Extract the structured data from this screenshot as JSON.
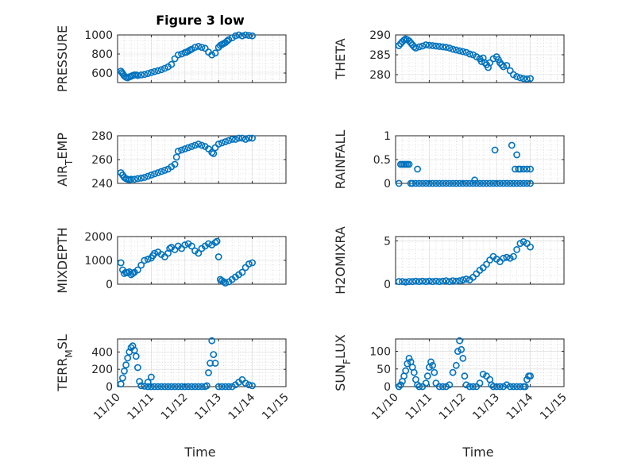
{
  "figure": {
    "title": "Figure 3 low",
    "marker_color": "#0072BD"
  },
  "chart_data": [
    {
      "type": "scatter",
      "panel": "pressure",
      "title": "Figure 3 low",
      "ylabel": "PRESSURE",
      "ylim": [
        500,
        1000
      ],
      "yticks": [
        600,
        800,
        1000
      ],
      "xlim": [
        0,
        5
      ],
      "xlabel": "",
      "grid": true,
      "marker": "circle",
      "x": [
        0.1,
        0.13,
        0.16,
        0.2,
        0.25,
        0.3,
        0.35,
        0.4,
        0.45,
        0.5,
        0.55,
        0.6,
        0.7,
        0.8,
        0.9,
        1.0,
        1.1,
        1.2,
        1.3,
        1.4,
        1.5,
        1.6,
        1.7,
        1.8,
        1.9,
        2.0,
        2.05,
        2.1,
        2.15,
        2.2,
        2.3,
        2.4,
        2.5,
        2.6,
        2.7,
        2.8,
        2.9,
        3.0,
        3.05,
        3.1,
        3.15,
        3.2,
        3.25,
        3.3,
        3.4,
        3.5,
        3.6,
        3.7,
        3.8,
        3.9,
        4.0
      ],
      "y": [
        620,
        605,
        590,
        570,
        555,
        550,
        560,
        565,
        575,
        580,
        580,
        575,
        580,
        585,
        595,
        605,
        615,
        625,
        635,
        650,
        665,
        690,
        750,
        790,
        800,
        815,
        820,
        830,
        840,
        850,
        870,
        880,
        870,
        860,
        820,
        790,
        810,
        870,
        890,
        900,
        910,
        920,
        935,
        950,
        970,
        990,
        1000,
        990,
        1000,
        995,
        990
      ]
    },
    {
      "type": "scatter",
      "panel": "theta",
      "ylabel": "THETA",
      "ylim": [
        278,
        290
      ],
      "yticks": [
        280,
        285,
        290
      ],
      "xlim": [
        0,
        5
      ],
      "grid": true,
      "marker": "circle",
      "x": [
        0.1,
        0.15,
        0.2,
        0.25,
        0.3,
        0.35,
        0.4,
        0.45,
        0.5,
        0.55,
        0.6,
        0.7,
        0.8,
        0.9,
        1.0,
        1.1,
        1.2,
        1.3,
        1.4,
        1.5,
        1.6,
        1.7,
        1.8,
        1.9,
        2.0,
        2.1,
        2.2,
        2.3,
        2.4,
        2.5,
        2.55,
        2.6,
        2.65,
        2.7,
        2.75,
        2.8,
        2.9,
        3.0,
        3.05,
        3.1,
        3.15,
        3.2,
        3.3,
        3.4,
        3.5,
        3.6,
        3.7,
        3.8,
        3.9,
        4.0
      ],
      "y": [
        287.3,
        287.8,
        288.3,
        288.7,
        289.0,
        288.8,
        288.5,
        288.0,
        287.5,
        287.0,
        286.7,
        287.0,
        287.2,
        287.5,
        287.4,
        287.3,
        287.2,
        287.1,
        287.0,
        286.9,
        286.7,
        286.4,
        286.2,
        286.0,
        285.8,
        285.6,
        285.2,
        285.0,
        284.5,
        284.0,
        283.3,
        284.2,
        283.0,
        282.5,
        281.8,
        283.0,
        284.0,
        284.5,
        283.8,
        283.0,
        282.5,
        282.0,
        282.3,
        281.0,
        280.0,
        279.5,
        279.2,
        279.0,
        278.9,
        279.0
      ]
    },
    {
      "type": "scatter",
      "panel": "air_temp",
      "ylabel": "AIR",
      "ylabel_sub": "T",
      "ylabel_rest": "EMP",
      "ylim": [
        240,
        280
      ],
      "yticks": [
        240,
        260,
        280
      ],
      "xlim": [
        0,
        5
      ],
      "grid": true,
      "marker": "circle",
      "x": [
        0.1,
        0.15,
        0.2,
        0.25,
        0.3,
        0.35,
        0.4,
        0.5,
        0.6,
        0.7,
        0.8,
        0.9,
        1.0,
        1.1,
        1.2,
        1.3,
        1.4,
        1.5,
        1.6,
        1.7,
        1.75,
        1.8,
        1.9,
        2.0,
        2.1,
        2.2,
        2.3,
        2.4,
        2.5,
        2.6,
        2.7,
        2.8,
        2.85,
        2.9,
        3.0,
        3.1,
        3.2,
        3.3,
        3.4,
        3.5,
        3.6,
        3.7,
        3.8,
        3.9,
        4.0
      ],
      "y": [
        249,
        247,
        245,
        244,
        243.5,
        243,
        243.5,
        243.5,
        244,
        244.5,
        245,
        246,
        247,
        248,
        249,
        250,
        251,
        252,
        254,
        256,
        262,
        267,
        268,
        269,
        270,
        271,
        272,
        273,
        272,
        271,
        269,
        266,
        265,
        270,
        273,
        274,
        275,
        276,
        277,
        277,
        278,
        278,
        277,
        278,
        278
      ]
    },
    {
      "type": "scatter",
      "panel": "rainfall",
      "ylabel": "RAINFALL",
      "ylim": [
        0,
        1
      ],
      "yticks": [
        0,
        0.5,
        1
      ],
      "ytick_labels": [
        "0",
        "0.5",
        "1"
      ],
      "xlim": [
        0,
        5
      ],
      "grid": true,
      "marker": "circle",
      "x": [
        0.1,
        0.15,
        0.2,
        0.25,
        0.3,
        0.35,
        0.4,
        0.45,
        0.5,
        0.6,
        0.7,
        0.8,
        0.9,
        1.0,
        1.1,
        1.2,
        1.3,
        1.4,
        1.5,
        1.6,
        1.7,
        1.8,
        1.9,
        2.0,
        2.1,
        2.2,
        2.3,
        2.4,
        2.5,
        2.6,
        2.7,
        2.8,
        2.9,
        3.0,
        3.1,
        3.2,
        3.3,
        3.4,
        3.5,
        3.6,
        3.7,
        3.8,
        3.9,
        4.0,
        0.65,
        2.35,
        2.95,
        3.45,
        3.55,
        3.6,
        3.65,
        3.7,
        3.8,
        3.9,
        4.0
      ],
      "y": [
        0,
        0.4,
        0.4,
        0.4,
        0.4,
        0.4,
        0.4,
        0,
        0,
        0,
        0,
        0,
        0,
        0,
        0,
        0,
        0,
        0,
        0,
        0,
        0,
        0,
        0,
        0,
        0,
        0,
        0,
        0,
        0,
        0,
        0,
        0,
        0,
        0,
        0,
        0,
        0,
        0,
        0,
        0,
        0,
        0,
        0,
        0,
        0.3,
        0.07,
        0.7,
        0.8,
        0.3,
        0.6,
        0.3,
        0.3,
        0.3,
        0.3,
        0.3
      ]
    },
    {
      "type": "scatter",
      "panel": "mixdepth",
      "ylabel": "MIXDEPTH",
      "ylim": [
        0,
        2000
      ],
      "yticks": [
        0,
        1000,
        2000
      ],
      "xlim": [
        0,
        5
      ],
      "grid": true,
      "marker": "circle",
      "x": [
        0.1,
        0.15,
        0.2,
        0.25,
        0.3,
        0.35,
        0.4,
        0.45,
        0.5,
        0.6,
        0.7,
        0.8,
        0.9,
        1.0,
        1.05,
        1.1,
        1.2,
        1.3,
        1.4,
        1.5,
        1.55,
        1.6,
        1.7,
        1.8,
        1.9,
        2.0,
        2.1,
        2.2,
        2.3,
        2.4,
        2.5,
        2.6,
        2.7,
        2.8,
        2.9,
        2.95,
        3.0,
        3.05,
        3.1,
        3.15,
        3.2,
        3.3,
        3.4,
        3.5,
        3.6,
        3.7,
        3.8,
        3.9,
        4.0
      ],
      "y": [
        900,
        600,
        450,
        500,
        480,
        520,
        400,
        450,
        500,
        600,
        800,
        1000,
        1050,
        1100,
        1200,
        1300,
        1350,
        1250,
        1150,
        1300,
        1500,
        1550,
        1450,
        1600,
        1500,
        1650,
        1700,
        1600,
        1400,
        1300,
        1500,
        1600,
        1700,
        1650,
        1750,
        1800,
        1150,
        200,
        150,
        100,
        50,
        100,
        200,
        300,
        400,
        500,
        700,
        850,
        900
      ]
    },
    {
      "type": "scatter",
      "panel": "h2omixra",
      "ylabel": "H2OMIXRA",
      "ylim": [
        0,
        5.5
      ],
      "yticks": [
        0,
        5
      ],
      "xlim": [
        0,
        5
      ],
      "grid": true,
      "marker": "circle",
      "x": [
        0.1,
        0.2,
        0.3,
        0.4,
        0.5,
        0.6,
        0.7,
        0.8,
        0.9,
        1.0,
        1.1,
        1.2,
        1.3,
        1.4,
        1.5,
        1.6,
        1.7,
        1.8,
        1.9,
        2.0,
        2.1,
        2.2,
        2.3,
        2.4,
        2.5,
        2.6,
        2.7,
        2.8,
        2.9,
        3.0,
        3.1,
        3.2,
        3.3,
        3.4,
        3.5,
        3.6,
        3.7,
        3.8,
        3.9,
        4.0
      ],
      "y": [
        0.3,
        0.3,
        0.25,
        0.3,
        0.3,
        0.35,
        0.3,
        0.35,
        0.3,
        0.35,
        0.3,
        0.35,
        0.3,
        0.35,
        0.4,
        0.3,
        0.4,
        0.35,
        0.4,
        0.5,
        0.6,
        0.5,
        0.8,
        1.2,
        1.6,
        1.9,
        2.3,
        2.8,
        3.2,
        2.9,
        2.6,
        3.0,
        3.1,
        3.0,
        3.2,
        4.0,
        4.7,
        4.9,
        4.7,
        4.3
      ]
    },
    {
      "type": "scatter",
      "panel": "terr_msl",
      "ylabel": "TERR",
      "ylabel_sub": "M",
      "ylabel_rest": "SL",
      "ylim": [
        0,
        550
      ],
      "yticks": [
        0,
        200,
        400
      ],
      "xlim": [
        0,
        5
      ],
      "grid": true,
      "marker": "circle",
      "x": [
        0.1,
        0.15,
        0.2,
        0.25,
        0.3,
        0.35,
        0.4,
        0.45,
        0.5,
        0.55,
        0.6,
        0.65,
        0.7,
        0.8,
        0.9,
        1.0,
        1.1,
        1.2,
        1.3,
        1.4,
        1.5,
        1.6,
        1.7,
        1.8,
        1.9,
        2.0,
        2.1,
        2.2,
        2.3,
        2.4,
        2.5,
        2.6,
        2.65,
        2.7,
        2.75,
        2.8,
        2.85,
        2.9,
        3.0,
        3.1,
        3.2,
        3.3,
        3.4,
        3.5,
        3.6,
        3.7,
        3.8,
        3.9,
        4.0,
        0.9,
        1.0
      ],
      "y": [
        30,
        100,
        180,
        250,
        330,
        400,
        450,
        470,
        420,
        350,
        220,
        60,
        10,
        5,
        0,
        0,
        0,
        0,
        0,
        0,
        0,
        0,
        0,
        0,
        0,
        0,
        0,
        0,
        0,
        0,
        0,
        0,
        10,
        160,
        270,
        530,
        370,
        270,
        0,
        0,
        0,
        0,
        0,
        20,
        50,
        80,
        40,
        20,
        10,
        50,
        110
      ]
    },
    {
      "type": "scatter",
      "panel": "sun_flux",
      "ylabel": "SUN",
      "ylabel_sub": "F",
      "ylabel_rest": "LUX",
      "ylim": [
        0,
        135
      ],
      "yticks": [
        0,
        50,
        100
      ],
      "xlim": [
        0,
        5
      ],
      "xticks": [
        0,
        1,
        2,
        3,
        4,
        5
      ],
      "xtick_labels": [
        "11/10",
        "11/11",
        "11/12",
        "11/13",
        "11/14",
        "11/15"
      ],
      "xlabel": "Time",
      "grid": true,
      "marker": "circle",
      "x": [
        0.1,
        0.15,
        0.2,
        0.25,
        0.3,
        0.35,
        0.4,
        0.45,
        0.5,
        0.55,
        0.6,
        0.65,
        0.7,
        0.8,
        0.9,
        0.95,
        1.0,
        1.05,
        1.1,
        1.15,
        1.2,
        1.3,
        1.4,
        1.5,
        1.6,
        1.7,
        1.8,
        1.85,
        1.9,
        1.95,
        2.0,
        2.05,
        2.1,
        2.2,
        2.3,
        2.4,
        2.5,
        2.6,
        2.7,
        2.8,
        2.85,
        2.9,
        3.0,
        3.1,
        3.2,
        3.3,
        3.4,
        3.5,
        3.6,
        3.7,
        3.8,
        3.85,
        3.9,
        3.95,
        4.0
      ],
      "y": [
        0,
        5,
        15,
        30,
        45,
        65,
        80,
        70,
        55,
        40,
        20,
        5,
        0,
        0,
        10,
        30,
        55,
        70,
        60,
        40,
        10,
        0,
        0,
        0,
        5,
        40,
        60,
        100,
        130,
        105,
        80,
        30,
        5,
        0,
        0,
        0,
        10,
        35,
        30,
        20,
        5,
        0,
        0,
        0,
        0,
        5,
        0,
        0,
        0,
        0,
        0,
        0,
        20,
        30,
        30
      ]
    }
  ]
}
